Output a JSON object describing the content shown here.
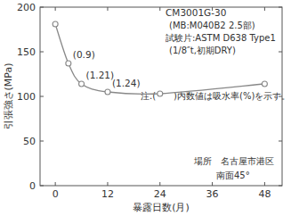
{
  "chart_data": {
    "type": "line",
    "title": "CM3001G-30",
    "subtitle": [
      "(MB:M040B2  2.5部)",
      "試験片:ASTM D638 Type1",
      "(1/8″t,初期DRY)"
    ],
    "x_label": "暴露日数(月)",
    "y_label": "引張強さ(MPa)",
    "note": "注.(　　)内数値は吸水率(%)を示す。",
    "location": [
      "場所　名古屋市港区",
      "南面45°"
    ],
    "x": [
      0,
      3,
      6,
      12,
      24,
      48
    ],
    "series": [
      {
        "name": "CM3001G-30",
        "color": "#888888",
        "marker": "open-circle",
        "line_style": "smooth",
        "values": [
          181,
          137,
          114,
          105,
          103,
          114
        ],
        "point_labels": [
          null,
          "(0.9)",
          "(1.21)",
          "(1.24)",
          null,
          null
        ]
      }
    ],
    "xlim": [
      -3.5,
      52
    ],
    "xticks": [
      0,
      12,
      24,
      36,
      48
    ],
    "ylim": [
      0,
      200
    ],
    "yticks": [
      0,
      50,
      100,
      150,
      200
    ],
    "grid": false
  }
}
